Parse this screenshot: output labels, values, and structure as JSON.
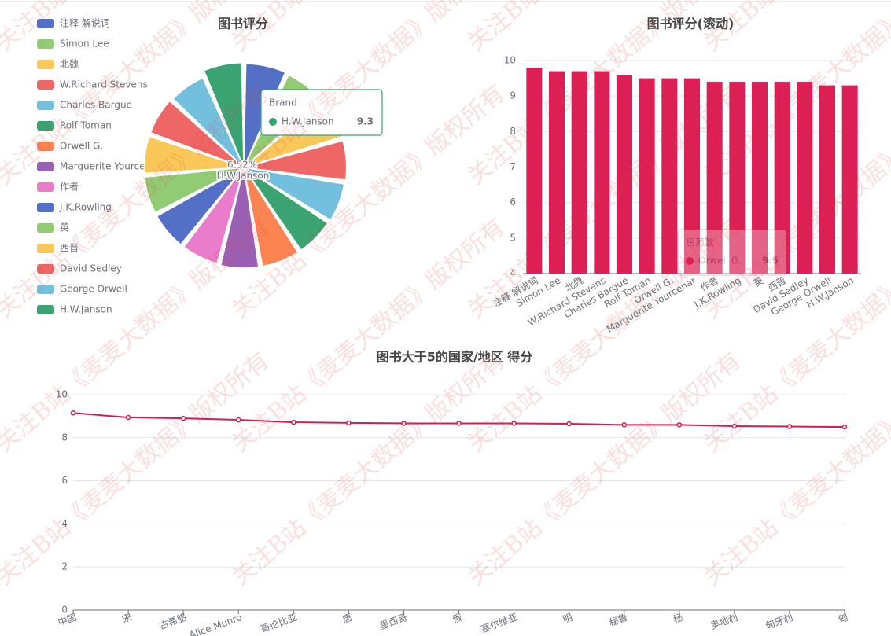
{
  "watermark": "关注B站《麦麦大数据》版权所有",
  "chart_data": [
    {
      "type": "pie",
      "rose": true,
      "title": "图书评分",
      "categories": [
        "注释 解说词",
        "Simon Lee",
        "北魏",
        "W.Richard Stevens",
        "Charles Bargue",
        "Rolf Toman",
        "Orwell G.",
        "Marguerite Yourcenar",
        "作者",
        "J.K.Rowling",
        "英",
        "西晋",
        "David Sedley",
        "George Orwell",
        "H.W.Janson"
      ],
      "values": [
        9.8,
        9.7,
        9.7,
        9.7,
        9.6,
        9.5,
        9.5,
        9.5,
        9.4,
        9.4,
        9.4,
        9.4,
        9.4,
        9.3,
        9.3
      ],
      "colors": [
        "#5470c6",
        "#91cc75",
        "#fac858",
        "#ee6666",
        "#73c0de",
        "#3ba272",
        "#fc8452",
        "#9a60b4",
        "#ea7ccc",
        "#5470c6",
        "#91cc75",
        "#fac858",
        "#ee6666",
        "#73c0de",
        "#3ba272"
      ],
      "legend": "left",
      "annotation": "6.52%",
      "tooltip": {
        "title": "Brand",
        "index": 14
      }
    },
    {
      "type": "bar",
      "title": "图书评分(滚动)",
      "categories": [
        "注释 解说词",
        "Simon Lee",
        "北魏",
        "W.Richard Stevens",
        "Charles Bargue",
        "Rolf Toman",
        "Orwell G.",
        "Marguerite Yourcenar",
        "作者",
        "J.K.Rowling",
        "英",
        "西晋",
        "David Sedley",
        "George Orwell",
        "H.W.Janson"
      ],
      "values": [
        9.8,
        9.7,
        9.7,
        9.7,
        9.6,
        9.5,
        9.5,
        9.5,
        9.4,
        9.4,
        9.4,
        9.4,
        9.4,
        9.3,
        9.3
      ],
      "color": "#dc1f55",
      "ylim": [
        4,
        10
      ],
      "yticks": [
        4,
        5,
        6,
        7,
        8,
        9,
        10
      ],
      "grid": true,
      "tooltip": {
        "title": "房源数",
        "index": 6
      }
    },
    {
      "type": "line",
      "title": "图书大于5的国家/地区 得分",
      "categories": [
        "中国",
        "宋",
        "古希腊",
        "Alice Munro",
        "哥伦比亚",
        "唐",
        "墨西哥",
        "俄",
        "塞尔维亚",
        "明",
        "秘鲁",
        "秘",
        "奥地利",
        "匈牙利",
        "匈"
      ],
      "values": [
        9.15,
        8.94,
        8.9,
        8.83,
        8.72,
        8.69,
        8.67,
        8.67,
        8.67,
        8.65,
        8.6,
        8.6,
        8.54,
        8.52,
        8.5
      ],
      "color": "#d81b50",
      "ylim": [
        0,
        10
      ],
      "yticks": [
        0,
        2,
        4,
        6,
        8,
        10
      ],
      "grid": true
    }
  ]
}
